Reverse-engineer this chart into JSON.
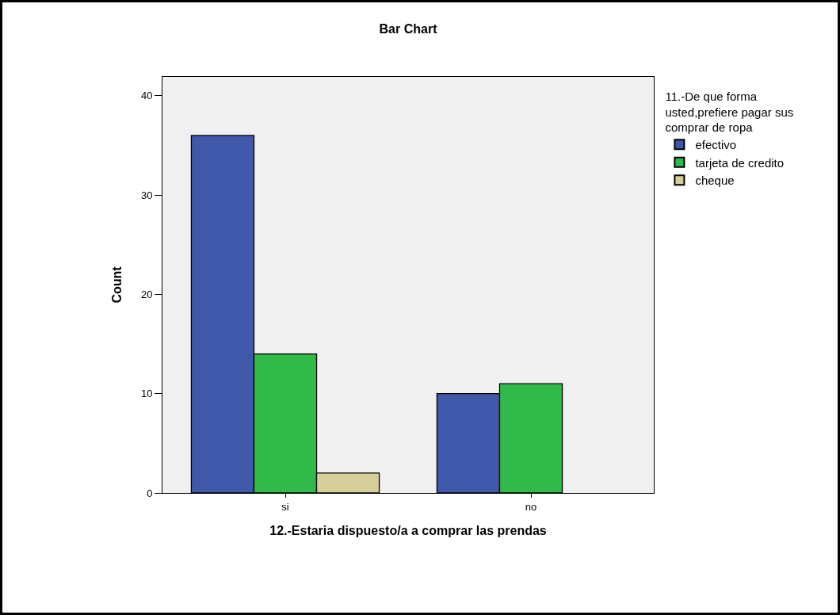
{
  "chart_data": {
    "type": "bar",
    "title": "Bar Chart",
    "xlabel": "12.-Estaria dispuesto/a a comprar las prendas",
    "ylabel": "Count",
    "legend_title": "11.-De que forma usted,prefiere pagar sus comprar de ropa",
    "categories": [
      "si",
      "no"
    ],
    "series": [
      {
        "name": "efectivo",
        "color": "#3f58aa",
        "values": [
          36,
          10
        ]
      },
      {
        "name": "tarjeta de credito",
        "color": "#2fba4a",
        "values": [
          14,
          11
        ]
      },
      {
        "name": "cheque",
        "color": "#d6cf9a",
        "values": [
          2,
          null
        ]
      }
    ],
    "ylim": [
      0,
      41.9
    ],
    "yticks": [
      0,
      10,
      20,
      30,
      40
    ],
    "grid": false,
    "legend": "top right"
  }
}
